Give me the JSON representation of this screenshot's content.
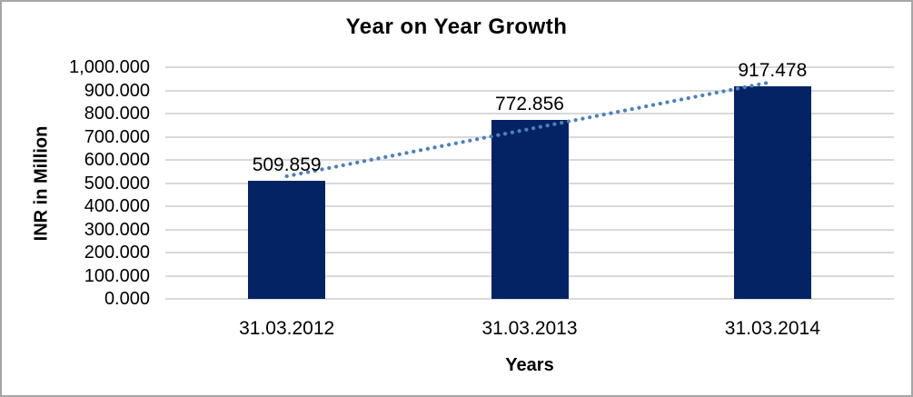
{
  "chart_data": {
    "type": "bar",
    "title": "Year on Year Growth",
    "xlabel": "Years",
    "ylabel": "INR in Million",
    "categories": [
      "31.03.2012",
      "31.03.2013",
      "31.03.2014"
    ],
    "values": [
      509.859,
      772.856,
      917.478
    ],
    "data_labels": [
      "509.859",
      "772.856",
      "917.478"
    ],
    "ylim": [
      0,
      1000
    ],
    "y_ticks": [
      0,
      100,
      200,
      300,
      400,
      500,
      600,
      700,
      800,
      900,
      1000
    ],
    "y_tick_labels": [
      "0.000",
      "100.000",
      "200.000",
      "300.000",
      "400.000",
      "500.000",
      "600.000",
      "700.000",
      "800.000",
      "900.000",
      "1,000.000"
    ],
    "grid": "horizontal",
    "legend": "none",
    "trendline": {
      "type": "linear",
      "style": "dotted",
      "fit_values": [
        529.59,
        733.4,
        937.21
      ]
    },
    "colors": {
      "bar": "#032365",
      "trendline": "#4E80BC",
      "gridline": "#D9D9D9",
      "chart_border": "#A6A6A6",
      "text": "#000000",
      "background": "#FFFFFF"
    }
  }
}
